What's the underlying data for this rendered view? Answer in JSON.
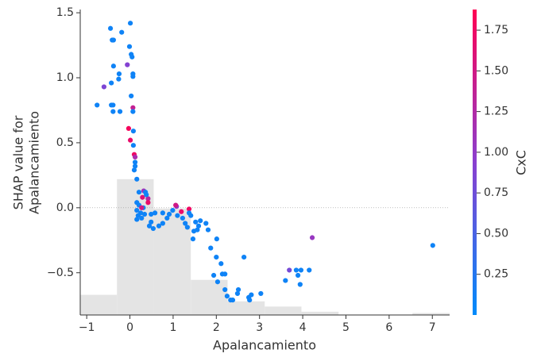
{
  "chart_data": {
    "type": "scatter",
    "xlabel": "Apalancamiento",
    "ylabel": [
      "SHAP value for",
      "Apalancamiento"
    ],
    "colorbar_label": "CxC",
    "xlim": [
      -1.15,
      7.4
    ],
    "ylim": [
      -0.825,
      1.525
    ],
    "clim": [
      0,
      1.877
    ],
    "xticks": [
      {
        "value": -1,
        "label": "−1"
      },
      0,
      1,
      2,
      3,
      4,
      5,
      6,
      7
    ],
    "yticks": [
      {
        "value": -0.5,
        "label": "−0.5"
      },
      {
        "value": 0,
        "label": "0.0"
      },
      0.5,
      {
        "value": 1,
        "label": "1.0"
      },
      1.5
    ],
    "cticks": [
      0.25,
      {
        "value": 0.5,
        "label": "0.50"
      },
      0.75,
      {
        "value": 1,
        "label": "1.00"
      },
      1.25,
      {
        "value": 1.5,
        "label": "1.50"
      },
      1.75
    ],
    "colormap": [
      "#008bfb",
      "#8a3fd0",
      "#ff0052"
    ],
    "reference_line": 0,
    "histogram": {
      "color": "#e4e4e4",
      "bins": [
        -1.15,
        -0.3,
        0.55,
        1.41,
        2.26,
        3.12,
        3.97,
        4.83,
        5.68,
        6.54,
        7.4
      ],
      "tops": [
        -0.67,
        0.22,
        -0.006,
        -0.555,
        -0.72,
        -0.76,
        -0.8,
        null,
        null,
        -0.81
      ]
    },
    "x": [
      -0.76,
      -0.45,
      -0.41,
      -0.38,
      -0.19,
      0.01,
      -0.01,
      0.03,
      0.05,
      -0.06,
      -0.38,
      -0.25,
      -0.26,
      0.07,
      0.07,
      -0.6,
      -0.43,
      0.03,
      -0.43,
      -0.39,
      -0.39,
      -0.23,
      0.07,
      0.07,
      -0.03,
      0.01,
      0.08,
      0.08,
      0.1,
      0.12,
      0.12,
      0.12,
      0.1,
      0.16,
      0.21,
      0.32,
      0.36,
      0.29,
      0.42,
      0.38,
      0.16,
      0.21,
      0.16,
      0.25,
      0.31,
      0.42,
      0.19,
      0.34,
      0.27,
      0.16,
      0.49,
      0.58,
      0.49,
      0.45,
      0.54,
      0.67,
      0.76,
      0.86,
      0.91,
      0.76,
      0.99,
      1.08,
      1.06,
      1.19,
      1.1,
      1.22,
      1.28,
      1.33,
      1.37,
      1.37,
      1.41,
      1.52,
      1.48,
      1.56,
      1.59,
      1.63,
      1.76,
      1.81,
      1.46,
      2.01,
      1.87,
      2.0,
      2.11,
      2.14,
      2.2,
      1.94,
      2.03,
      2.2,
      2.25,
      2.33,
      2.38,
      2.51,
      2.49,
      2.64,
      2.75,
      2.81,
      2.77,
      3.03,
      3.6,
      3.69,
      3.89,
      3.85,
      3.96,
      3.94,
      4.15,
      4.22,
      7.01,
      0.27
    ],
    "values": [
      0.79,
      1.38,
      1.29,
      1.29,
      1.35,
      1.42,
      1.24,
      1.18,
      1.16,
      1.1,
      1.09,
      1.03,
      0.99,
      1.03,
      1.01,
      0.93,
      0.96,
      0.86,
      0.79,
      0.79,
      0.74,
      0.74,
      0.77,
      0.74,
      0.61,
      0.52,
      0.59,
      0.48,
      0.41,
      0.39,
      0.35,
      0.32,
      0.29,
      0.22,
      0.12,
      0.13,
      0.12,
      0.08,
      0.07,
      0.1,
      0.04,
      0.02,
      -0.02,
      -0.04,
      0.0,
      0.04,
      -0.06,
      -0.05,
      -0.08,
      -0.09,
      -0.05,
      -0.04,
      -0.11,
      -0.14,
      -0.16,
      -0.14,
      -0.12,
      -0.08,
      -0.05,
      -0.04,
      -0.02,
      0.01,
      0.02,
      -0.03,
      -0.06,
      -0.08,
      -0.12,
      -0.15,
      -0.01,
      -0.04,
      -0.06,
      -0.11,
      -0.18,
      -0.17,
      -0.14,
      -0.1,
      -0.12,
      -0.17,
      -0.24,
      -0.24,
      -0.31,
      -0.38,
      -0.43,
      -0.51,
      -0.51,
      -0.52,
      -0.57,
      -0.63,
      -0.68,
      -0.71,
      -0.71,
      -0.63,
      -0.66,
      -0.38,
      -0.69,
      -0.67,
      -0.71,
      -0.66,
      -0.56,
      -0.48,
      -0.52,
      -0.48,
      -0.48,
      -0.59,
      -0.48,
      -0.23,
      -0.29,
      0.0
    ],
    "color_values": [
      0.1,
      0.1,
      0.1,
      0.1,
      0.1,
      0.1,
      0.1,
      0.1,
      0.1,
      0.9,
      0.1,
      0.1,
      0.1,
      0.1,
      0.1,
      0.85,
      0.1,
      0.1,
      0.1,
      0.1,
      0.1,
      0.1,
      1.4,
      0.1,
      1.8,
      1.7,
      0.1,
      0.1,
      1.75,
      1.2,
      0.1,
      0.1,
      0.1,
      0.1,
      0.1,
      1.1,
      0.1,
      1.6,
      1.3,
      0.1,
      0.1,
      0.1,
      0.1,
      0.1,
      0.1,
      1.7,
      0.1,
      0.1,
      0.1,
      0.1,
      0.1,
      0.1,
      0.1,
      0.1,
      0.1,
      0.1,
      0.1,
      0.1,
      0.1,
      0.1,
      0.1,
      1.0,
      1.5,
      1.7,
      0.1,
      0.1,
      0.1,
      0.1,
      1.75,
      0.1,
      0.1,
      0.1,
      0.1,
      0.1,
      0.1,
      0.1,
      0.1,
      0.1,
      0.1,
      0.1,
      0.1,
      0.1,
      0.1,
      0.1,
      0.1,
      0.1,
      0.1,
      0.1,
      0.1,
      0.1,
      0.1,
      0.1,
      0.1,
      0.1,
      0.1,
      0.1,
      0.1,
      0.1,
      0.1,
      0.8,
      0.1,
      0.1,
      0.1,
      0.1,
      0.1,
      1.05,
      0.1,
      1.5
    ]
  }
}
